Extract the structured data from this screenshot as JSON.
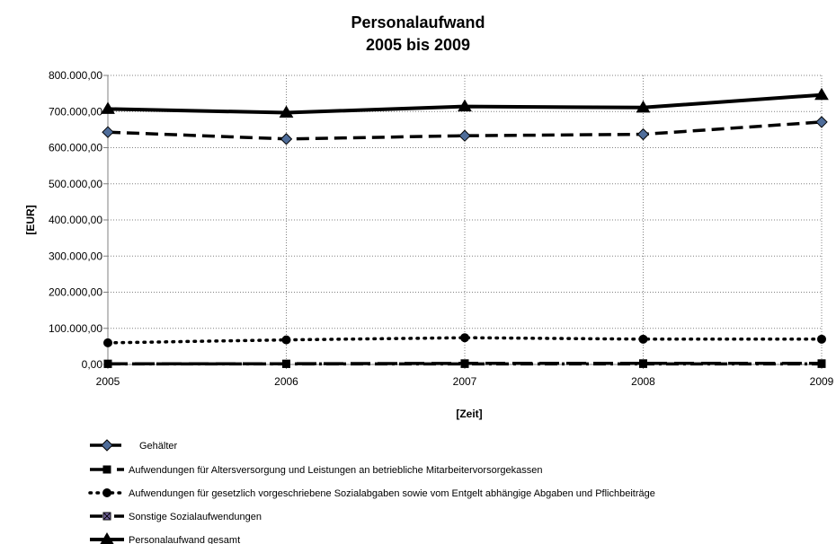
{
  "chart_data": {
    "type": "line",
    "title": "Personalaufwand",
    "subtitle": "2005 bis 2009",
    "xlabel": "[Zeit]",
    "ylabel": "[EUR]",
    "x": [
      "2005",
      "2006",
      "2007",
      "2008",
      "2009"
    ],
    "y_ticks": [
      "0,00",
      "100.000,00",
      "200.000,00",
      "300.000,00",
      "400.000,00",
      "500.000,00",
      "600.000,00",
      "700.000,00",
      "800.000,00"
    ],
    "ylim": [
      0,
      800000
    ],
    "grid": true,
    "legend_position": "bottom",
    "series": [
      {
        "name": "Gehälter",
        "values": [
          643000,
          624000,
          633000,
          637000,
          671000
        ],
        "line_style": "dashed",
        "marker": "diamond",
        "color": "#000000",
        "marker_fill": "#4f6d9a"
      },
      {
        "name": "Aufwendungen für Altersversorgung und Leistungen an betriebliche Mitarbeitervorsorgekassen",
        "values": [
          2000,
          2000,
          3000,
          3000,
          3000
        ],
        "line_style": "long-dash",
        "marker": "square",
        "color": "#000000",
        "marker_fill": "#000000"
      },
      {
        "name": "Aufwendungen für gesetzlich vorgeschriebene Sozialabgaben sowie vom Entgelt abhängige Abgaben und Pflichbeiträge",
        "values": [
          60000,
          68000,
          74000,
          70000,
          70000
        ],
        "line_style": "dotted",
        "marker": "circle",
        "color": "#000000",
        "marker_fill": "#000000"
      },
      {
        "name": "Sonstige Sozialaufwendungen",
        "values": [
          1500,
          1500,
          1500,
          1500,
          1500
        ],
        "line_style": "dash-dot",
        "marker": "x-square",
        "color": "#000000",
        "marker_fill": "#7b6aa8"
      },
      {
        "name": "Personalaufwand gesamt",
        "values": [
          707000,
          697000,
          714000,
          711000,
          746000
        ],
        "line_style": "solid",
        "marker": "triangle",
        "color": "#000000",
        "marker_fill": "#000000"
      }
    ]
  }
}
